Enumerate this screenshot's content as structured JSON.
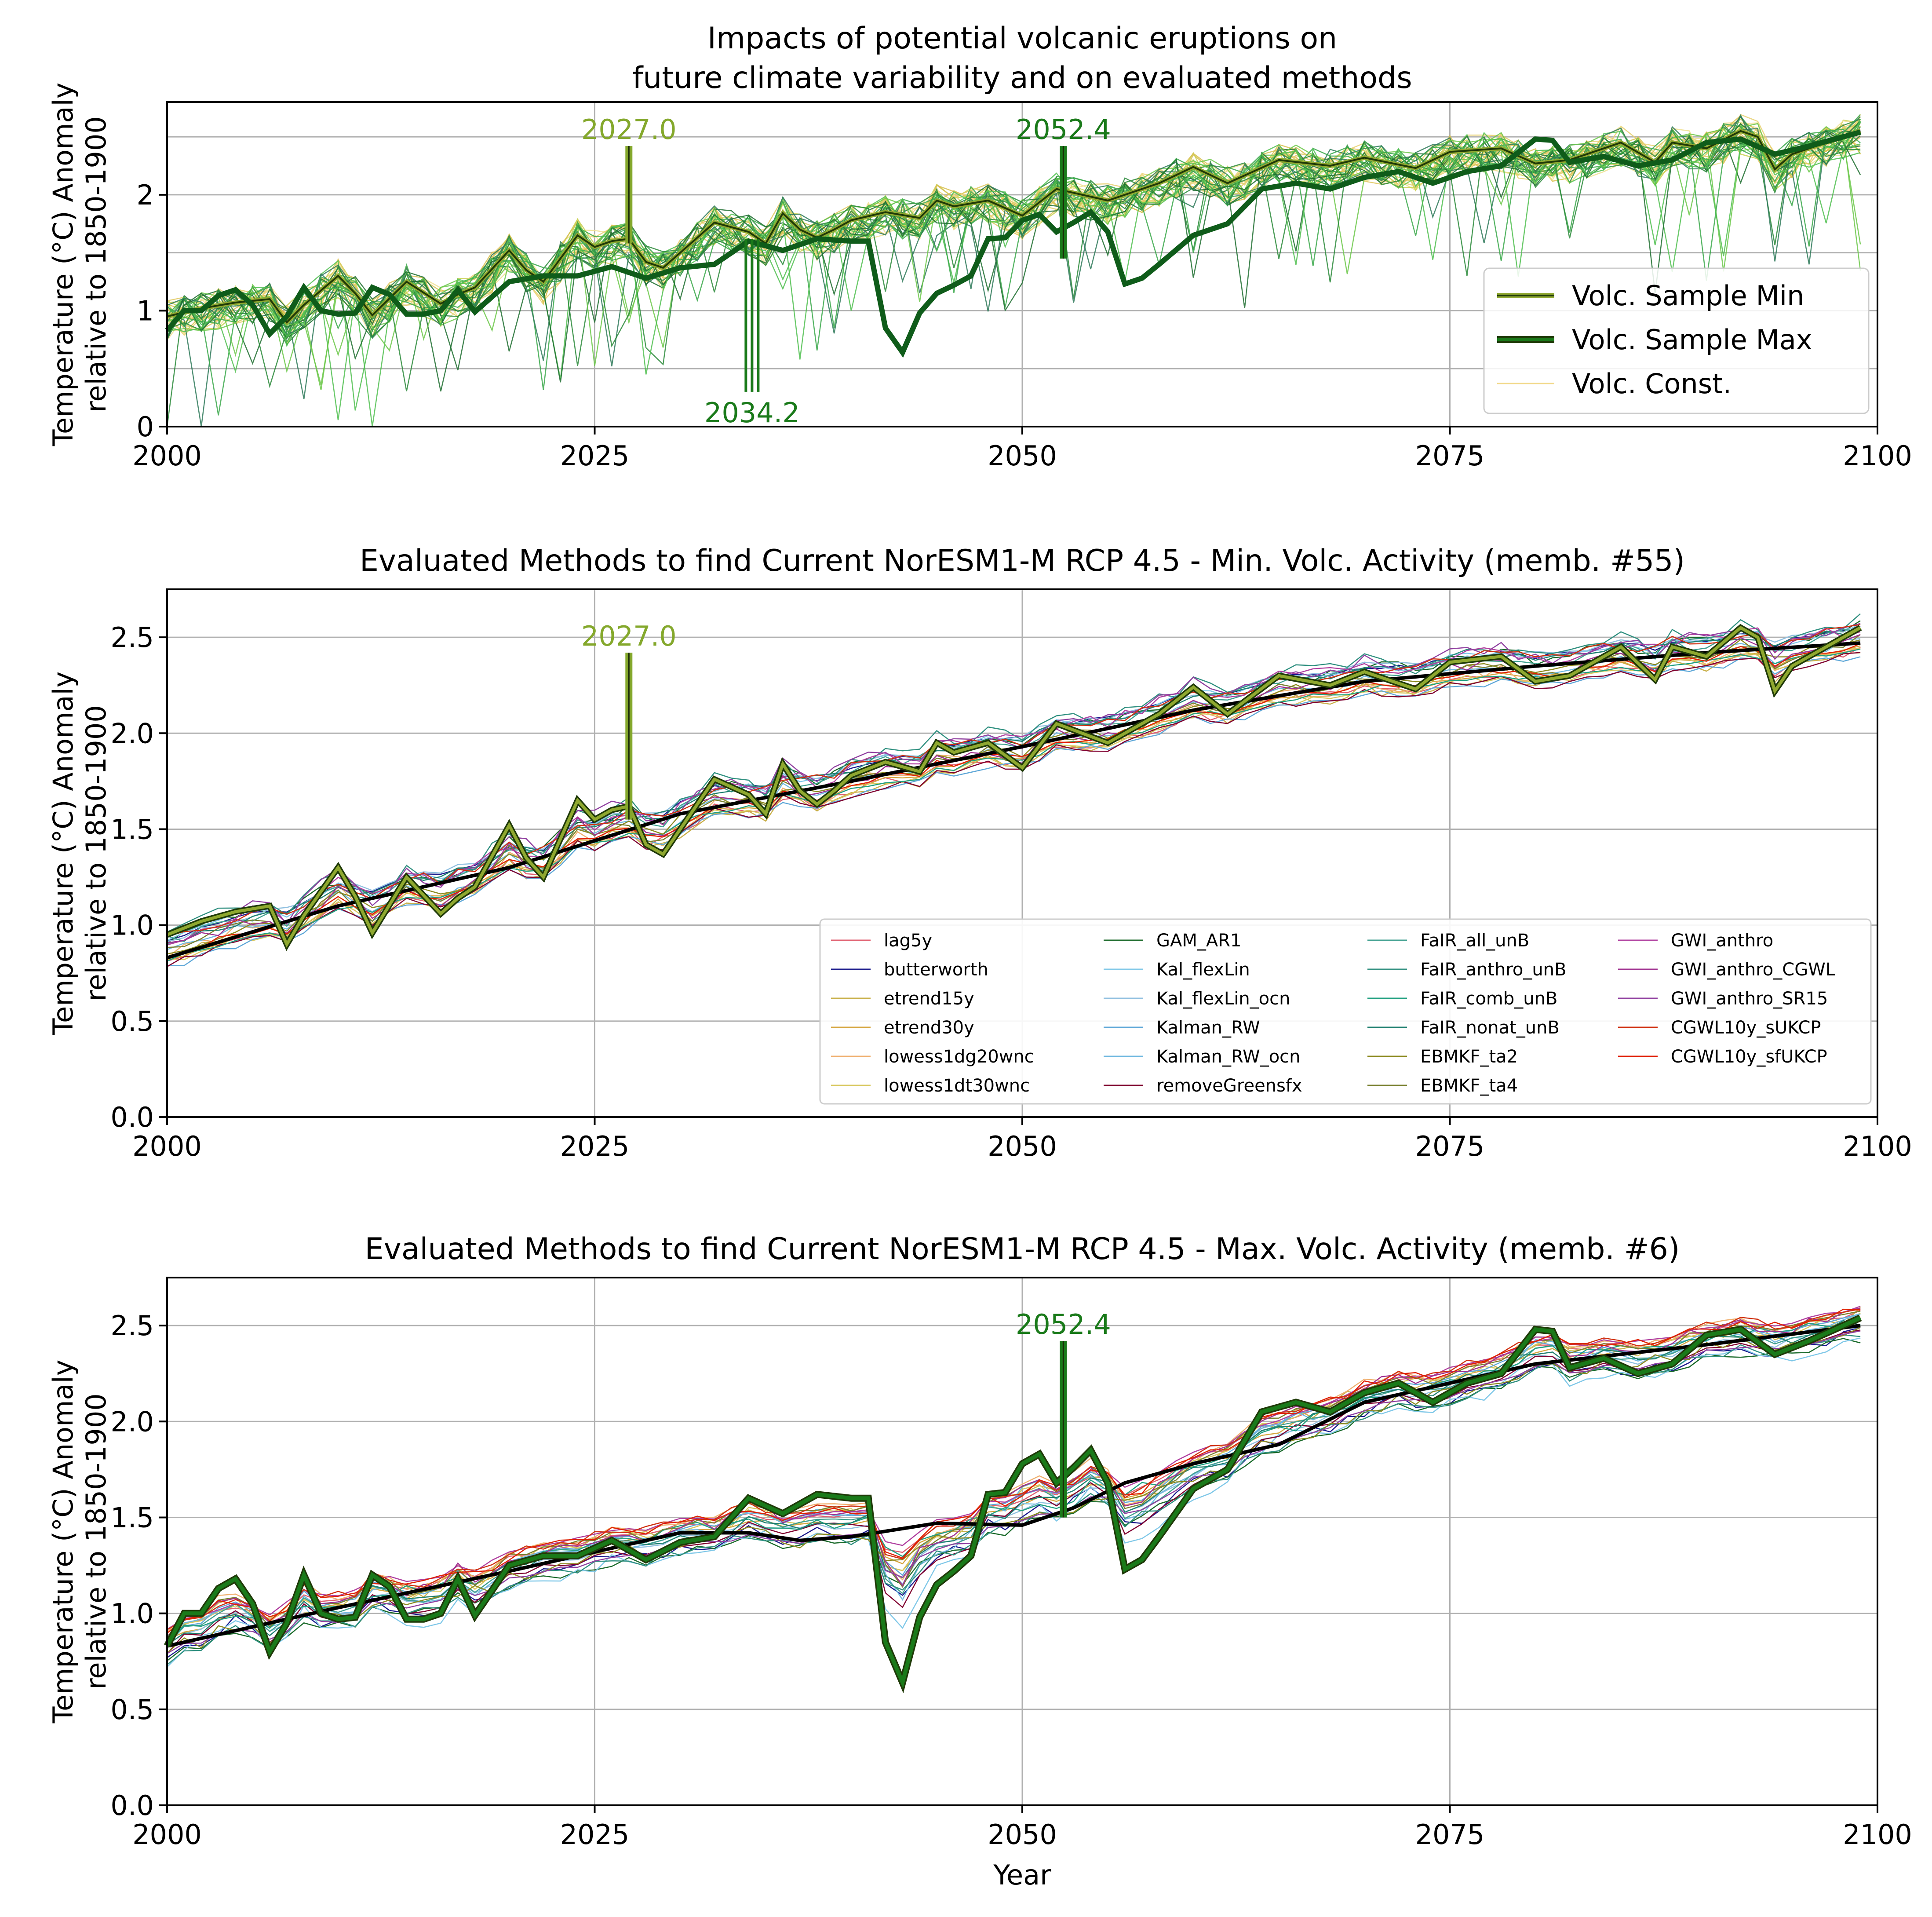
{
  "figure": {
    "xlabel": "Year"
  },
  "chart_data": [
    {
      "type": "line",
      "title_lines": [
        "Impacts of potential volcanic eruptions on",
        "future climate variability and on evaluated methods"
      ],
      "ylabel_lines": [
        "Temperature (°C) Anomaly",
        "relative to 1850-1900"
      ],
      "xlim": [
        2000,
        2100
      ],
      "ylim": [
        0,
        2.8
      ],
      "xticks": [
        2000,
        2025,
        2050,
        2075,
        2100
      ],
      "yticks": [
        0,
        1,
        2
      ],
      "grid": true,
      "legend_position": "lower-right",
      "legend": [
        {
          "label": "Volc. Sample Min",
          "color": "#5c6e0f"
        },
        {
          "label": "Volc. Sample Max",
          "color": "#0f5c1a"
        },
        {
          "label": "Volc. Const.",
          "color": "#f2d98c"
        }
      ],
      "annotations": [
        {
          "text": "2027.0",
          "x": 2027.0,
          "color": "#84a82c"
        },
        {
          "text": "2052.4",
          "x": 2052.4,
          "color": "#1a7a1a"
        },
        {
          "text": "2034.2",
          "x": 2034.2,
          "color": "#1a7a1a"
        }
      ],
      "series": [
        {
          "name": "Volc. Sample Min",
          "x": [
            2000,
            2002,
            2004,
            2006,
            2007,
            2008,
            2010,
            2011,
            2012,
            2014,
            2016,
            2017,
            2018,
            2020,
            2021,
            2022,
            2023,
            2024,
            2025,
            2026,
            2027,
            2028,
            2029,
            2030,
            2032,
            2034,
            2035,
            2036,
            2037,
            2038,
            2039,
            2040,
            2042,
            2044,
            2045,
            2046,
            2048,
            2050,
            2052,
            2055,
            2058,
            2060,
            2062,
            2065,
            2068,
            2070,
            2073,
            2075,
            2078,
            2080,
            2082,
            2085,
            2087,
            2088,
            2090,
            2092,
            2093,
            2094,
            2095,
            2097,
            2099
          ],
          "y": [
            0.95,
            1.02,
            1.07,
            1.1,
            0.9,
            1.05,
            1.3,
            1.15,
            0.96,
            1.25,
            1.06,
            1.14,
            1.2,
            1.52,
            1.35,
            1.25,
            1.45,
            1.65,
            1.55,
            1.6,
            1.62,
            1.42,
            1.37,
            1.5,
            1.76,
            1.68,
            1.58,
            1.84,
            1.7,
            1.63,
            1.7,
            1.78,
            1.85,
            1.8,
            1.95,
            1.9,
            1.95,
            1.82,
            2.05,
            1.95,
            2.1,
            2.24,
            2.1,
            2.3,
            2.25,
            2.32,
            2.23,
            2.37,
            2.4,
            2.27,
            2.3,
            2.45,
            2.28,
            2.45,
            2.4,
            2.55,
            2.5,
            2.22,
            2.35,
            2.45,
            2.55
          ]
        },
        {
          "name": "Volc. Sample Max",
          "x": [
            2000,
            2001,
            2002,
            2003,
            2004,
            2005,
            2006,
            2007,
            2008,
            2009,
            2010,
            2011,
            2012,
            2013,
            2014,
            2015,
            2016,
            2017,
            2018,
            2020,
            2022,
            2024,
            2026,
            2028,
            2030,
            2032,
            2034,
            2036,
            2038,
            2040,
            2041,
            2042,
            2043,
            2044,
            2045,
            2046,
            2047,
            2048,
            2049,
            2050,
            2051,
            2052,
            2053,
            2054,
            2055,
            2056,
            2057,
            2058,
            2060,
            2062,
            2064,
            2066,
            2068,
            2070,
            2072,
            2074,
            2076,
            2078,
            2080,
            2081,
            2082,
            2084,
            2086,
            2088,
            2090,
            2092,
            2094,
            2096,
            2098,
            2099
          ],
          "y": [
            0.83,
            1.0,
            1.0,
            1.13,
            1.18,
            1.05,
            0.8,
            0.95,
            1.2,
            1.0,
            0.97,
            0.98,
            1.2,
            1.14,
            0.97,
            0.97,
            1.0,
            1.18,
            0.99,
            1.25,
            1.3,
            1.3,
            1.38,
            1.28,
            1.37,
            1.4,
            1.6,
            1.52,
            1.62,
            1.6,
            1.6,
            0.85,
            0.64,
            0.98,
            1.15,
            1.22,
            1.3,
            1.62,
            1.63,
            1.78,
            1.83,
            1.68,
            1.76,
            1.85,
            1.68,
            1.23,
            1.28,
            1.4,
            1.65,
            1.75,
            2.05,
            2.1,
            2.05,
            2.15,
            2.2,
            2.1,
            2.2,
            2.25,
            2.48,
            2.47,
            2.28,
            2.33,
            2.25,
            2.3,
            2.45,
            2.48,
            2.35,
            2.42,
            2.5,
            2.54
          ]
        }
      ]
    },
    {
      "type": "line",
      "title": "Evaluated Methods to find Current NorESM1-M RCP 4.5 - Min. Volc. Activity (memb. #55)",
      "ylabel_lines": [
        "Temperature (°C) Anomaly",
        "relative to 1850-1900"
      ],
      "xlim": [
        2000,
        2100
      ],
      "ylim": [
        0,
        2.75
      ],
      "xticks": [
        2000,
        2025,
        2050,
        2075,
        2100
      ],
      "yticks": [
        0.0,
        0.5,
        1.0,
        1.5,
        2.0,
        2.5
      ],
      "grid": true,
      "legend_position": "lower-right",
      "legend_columns": [
        [
          {
            "label": "lag5y",
            "color": "#e06070"
          },
          {
            "label": "butterworth",
            "color": "#1a1a8c"
          },
          {
            "label": "etrend15y",
            "color": "#c9b04a"
          },
          {
            "label": "etrend30y",
            "color": "#d6a640"
          },
          {
            "label": "lowess1dg20wnc",
            "color": "#f0b070"
          },
          {
            "label": "lowess1dt30wnc",
            "color": "#d9c860"
          }
        ],
        [
          {
            "label": "GAM_AR1",
            "color": "#1a6a2a"
          },
          {
            "label": "Kal_flexLin",
            "color": "#80c8e8"
          },
          {
            "label": "Kal_flexLin_ocn",
            "color": "#90c0e0"
          },
          {
            "label": "Kalman_RW",
            "color": "#60a8d8"
          },
          {
            "label": "Kalman_RW_ocn",
            "color": "#70b8e0"
          },
          {
            "label": "removeGreensfx",
            "color": "#800030"
          }
        ],
        [
          {
            "label": "FaIR_all_unB",
            "color": "#40a090"
          },
          {
            "label": "FaIR_anthro_unB",
            "color": "#309080"
          },
          {
            "label": "FaIR_comb_unB",
            "color": "#20a080"
          },
          {
            "label": "FaIR_nonat_unB",
            "color": "#208070"
          },
          {
            "label": "EBMKF_ta2",
            "color": "#8c8a20"
          },
          {
            "label": "EBMKF_ta4",
            "color": "#7a8030"
          }
        ],
        [
          {
            "label": "GWI_anthro",
            "color": "#b040a0"
          },
          {
            "label": "GWI_anthro_CGWL",
            "color": "#a03090"
          },
          {
            "label": "GWI_anthro_SR15",
            "color": "#9040a0"
          },
          {
            "label": "CGWL10y_sUKCP",
            "color": "#d03010"
          },
          {
            "label": "CGWL10y_sfUKCP",
            "color": "#e02000"
          }
        ]
      ],
      "annotations": [
        {
          "text": "2027.0",
          "x": 2027.0,
          "color": "#84a82c"
        }
      ],
      "highlight_series": {
        "name": "Min. Volc. Activity (memb. #55)",
        "x": [
          2000,
          2002,
          2004,
          2006,
          2007,
          2008,
          2010,
          2011,
          2012,
          2014,
          2016,
          2017,
          2018,
          2020,
          2021,
          2022,
          2023,
          2024,
          2025,
          2026,
          2027,
          2028,
          2029,
          2030,
          2032,
          2034,
          2035,
          2036,
          2037,
          2038,
          2039,
          2040,
          2042,
          2044,
          2045,
          2046,
          2048,
          2050,
          2052,
          2055,
          2058,
          2060,
          2062,
          2065,
          2068,
          2070,
          2073,
          2075,
          2078,
          2080,
          2082,
          2085,
          2087,
          2088,
          2090,
          2092,
          2093,
          2094,
          2095,
          2097,
          2099
        ],
        "y": [
          0.95,
          1.02,
          1.07,
          1.1,
          0.9,
          1.05,
          1.3,
          1.15,
          0.96,
          1.25,
          1.06,
          1.14,
          1.2,
          1.52,
          1.35,
          1.25,
          1.45,
          1.65,
          1.55,
          1.6,
          1.62,
          1.42,
          1.37,
          1.5,
          1.76,
          1.68,
          1.58,
          1.84,
          1.7,
          1.63,
          1.7,
          1.78,
          1.85,
          1.8,
          1.95,
          1.9,
          1.95,
          1.82,
          2.05,
          1.95,
          2.1,
          2.24,
          2.1,
          2.3,
          2.25,
          2.32,
          2.23,
          2.37,
          2.4,
          2.27,
          2.3,
          2.45,
          2.28,
          2.45,
          2.4,
          2.55,
          2.5,
          2.22,
          2.35,
          2.45,
          2.55
        ]
      },
      "black_series": {
        "x": [
          2000,
          2010,
          2020,
          2030,
          2040,
          2050,
          2060,
          2070,
          2080,
          2090,
          2099
        ],
        "y": [
          0.83,
          1.1,
          1.3,
          1.58,
          1.75,
          1.93,
          2.12,
          2.27,
          2.35,
          2.42,
          2.47
        ]
      }
    },
    {
      "type": "line",
      "title": "Evaluated Methods to find Current NorESM1-M RCP 4.5 - Max. Volc. Activity (memb. #6)",
      "ylabel_lines": [
        "Temperature (°C) Anomaly",
        "relative to 1850-1900"
      ],
      "xlabel": "Year",
      "xlim": [
        2000,
        2100
      ],
      "ylim": [
        0,
        2.75
      ],
      "xticks": [
        2000,
        2025,
        2050,
        2075,
        2100
      ],
      "yticks": [
        0.0,
        0.5,
        1.0,
        1.5,
        2.0,
        2.5
      ],
      "grid": true,
      "annotations": [
        {
          "text": "2052.4",
          "x": 2052.4,
          "color": "#1a7a1a"
        }
      ],
      "highlight_series": {
        "name": "Max. Volc. Activity (memb. #6)",
        "x": [
          2000,
          2001,
          2002,
          2003,
          2004,
          2005,
          2006,
          2007,
          2008,
          2009,
          2010,
          2011,
          2012,
          2013,
          2014,
          2015,
          2016,
          2017,
          2018,
          2020,
          2022,
          2024,
          2026,
          2028,
          2030,
          2032,
          2034,
          2036,
          2038,
          2040,
          2041,
          2042,
          2043,
          2044,
          2045,
          2046,
          2047,
          2048,
          2049,
          2050,
          2051,
          2052,
          2053,
          2054,
          2055,
          2056,
          2057,
          2058,
          2060,
          2062,
          2064,
          2066,
          2068,
          2070,
          2072,
          2074,
          2076,
          2078,
          2080,
          2081,
          2082,
          2084,
          2086,
          2088,
          2090,
          2092,
          2094,
          2096,
          2098,
          2099
        ],
        "y": [
          0.83,
          1.0,
          1.0,
          1.13,
          1.18,
          1.05,
          0.8,
          0.95,
          1.2,
          1.0,
          0.97,
          0.98,
          1.2,
          1.14,
          0.97,
          0.97,
          1.0,
          1.18,
          0.99,
          1.25,
          1.3,
          1.3,
          1.38,
          1.28,
          1.37,
          1.4,
          1.6,
          1.52,
          1.62,
          1.6,
          1.6,
          0.85,
          0.64,
          0.98,
          1.15,
          1.22,
          1.3,
          1.62,
          1.63,
          1.78,
          1.83,
          1.68,
          1.76,
          1.85,
          1.68,
          1.23,
          1.28,
          1.4,
          1.65,
          1.75,
          2.05,
          2.1,
          2.05,
          2.15,
          2.2,
          2.1,
          2.2,
          2.25,
          2.48,
          2.47,
          2.28,
          2.33,
          2.25,
          2.3,
          2.45,
          2.48,
          2.35,
          2.42,
          2.5,
          2.54
        ]
      },
      "black_series": {
        "x": [
          2000,
          2010,
          2020,
          2030,
          2034,
          2037,
          2040,
          2045,
          2050,
          2053,
          2056,
          2060,
          2065,
          2070,
          2080,
          2090,
          2099
        ],
        "y": [
          0.83,
          1.03,
          1.22,
          1.42,
          1.42,
          1.38,
          1.4,
          1.47,
          1.46,
          1.55,
          1.68,
          1.78,
          1.88,
          2.1,
          2.3,
          2.4,
          2.5
        ]
      }
    }
  ]
}
